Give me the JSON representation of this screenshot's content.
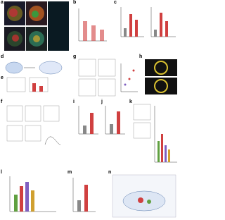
{
  "panels": {
    "a": "a",
    "b": "b",
    "c": "c",
    "d": "d",
    "e": "e",
    "f": "f",
    "g": "g",
    "h": "h",
    "i": "i",
    "j": "j",
    "k": "k",
    "l": "l",
    "m": "m",
    "n": "n"
  }
}
